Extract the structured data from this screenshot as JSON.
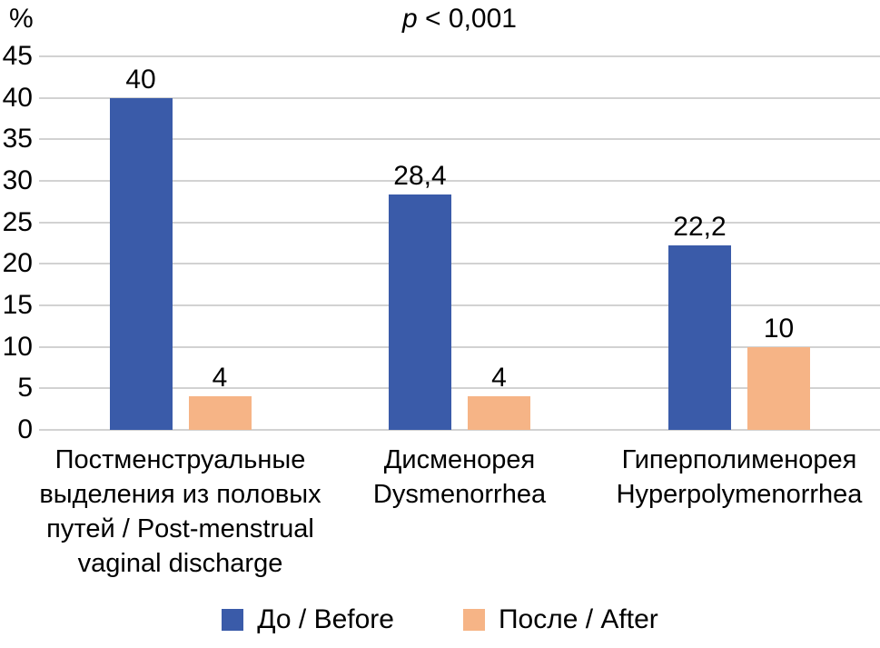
{
  "chart_data": {
    "type": "bar",
    "title_italic": "p",
    "title_rest": " < 0,001",
    "y_axis_unit": "%",
    "ylim": [
      0,
      45
    ],
    "y_ticks": [
      0,
      5,
      10,
      15,
      20,
      25,
      30,
      35,
      40,
      45
    ],
    "grid": true,
    "legend_position": "bottom",
    "categories": [
      [
        "Постменструальные",
        "выделения из половых",
        "путей / Post-menstrual",
        "vaginal discharge"
      ],
      [
        "Дисменорея",
        "Dysmenorrhea"
      ],
      [
        "Гиперполименорея",
        "Hyperpolymenorrhea"
      ]
    ],
    "series": [
      {
        "name": "До / Before",
        "color": "#3a5ba9",
        "values": [
          40,
          28.4,
          22.2
        ],
        "value_labels": [
          "40",
          "28,4",
          "22,2"
        ]
      },
      {
        "name": "После / After",
        "color": "#f6b486",
        "values": [
          4,
          4,
          10
        ],
        "value_labels": [
          "4",
          "4",
          "10"
        ]
      }
    ],
    "colors": {
      "gridline": "#d2d2d2",
      "text": "#000000",
      "background": "#ffffff"
    }
  }
}
